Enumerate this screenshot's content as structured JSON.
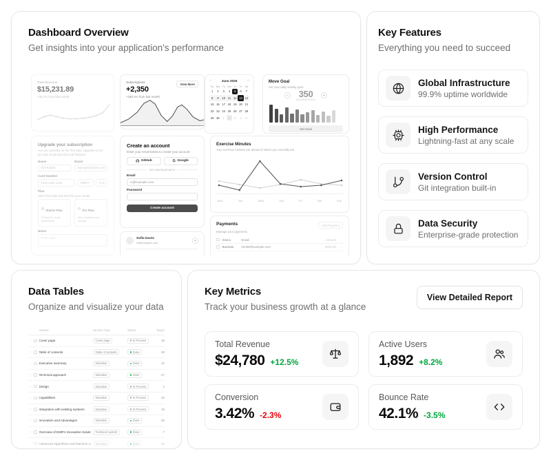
{
  "overview": {
    "title": "Dashboard Overview",
    "subtitle": "Get insights into your application's performance",
    "preview": {
      "revenue": {
        "label": "Total Revenue",
        "value": "$15,231.89",
        "change": "+20.1% from last month",
        "spark": [
          18,
          15,
          13.5,
          15,
          16.5,
          17,
          17,
          16.5,
          15.5,
          14,
          11,
          3
        ]
      },
      "subscriptions": {
        "label": "Subscriptions",
        "action": "View More",
        "value": "+2,350",
        "change": "+180.1% from last month",
        "area": [
          [
            0,
            36
          ],
          [
            10,
            31
          ],
          [
            20,
            22
          ],
          [
            28,
            10
          ],
          [
            35,
            6
          ],
          [
            41,
            11
          ],
          [
            48,
            26
          ],
          [
            55,
            34
          ],
          [
            61,
            27
          ],
          [
            67,
            15
          ],
          [
            72,
            12
          ],
          [
            78,
            18
          ],
          [
            85,
            28
          ],
          [
            93,
            33
          ],
          [
            100,
            31
          ]
        ]
      },
      "calendar": {
        "title": "June 2025",
        "prev": "‹",
        "next": "›",
        "weekdays": [
          "Su",
          "Mo",
          "Tu",
          "We",
          "Th",
          "Fr",
          "Sa"
        ],
        "band_week": 1,
        "weeks": [
          [
            {
              "d": "1"
            },
            {
              "d": "2"
            },
            {
              "d": "3"
            },
            {
              "d": "4"
            },
            {
              "d": "5",
              "sel": true
            },
            {
              "d": "6"
            },
            {
              "d": "7"
            }
          ],
          [
            {
              "d": "8"
            },
            {
              "d": "9"
            },
            {
              "d": "10"
            },
            {
              "d": "11"
            },
            {
              "d": "12"
            },
            {
              "d": "13",
              "sel": true
            },
            {
              "d": "14"
            }
          ],
          [
            {
              "d": "15"
            },
            {
              "d": "16"
            },
            {
              "d": "17"
            },
            {
              "d": "18"
            },
            {
              "d": "19"
            },
            {
              "d": "20"
            },
            {
              "d": "21"
            }
          ],
          [
            {
              "d": "22"
            },
            {
              "d": "23"
            },
            {
              "d": "24"
            },
            {
              "d": "25"
            },
            {
              "d": "26"
            },
            {
              "d": "27"
            },
            {
              "d": "28"
            }
          ],
          [
            {
              "d": "29"
            },
            {
              "d": "30"
            },
            {
              "d": "1",
              "out": true
            },
            {
              "d": "2",
              "out": true,
              "range": true
            },
            {
              "d": "3",
              "out": true
            },
            {
              "d": "4",
              "out": true
            },
            {
              "d": "5",
              "out": true
            }
          ]
        ]
      },
      "move_goal": {
        "title": "Move Goal",
        "subtitle": "Set your daily activity goal.",
        "minus": "−",
        "plus": "+",
        "value": "350",
        "unit": "CALORIES/DAY",
        "button": "Set Goal",
        "bars": [
          26,
          20,
          12,
          22,
          13,
          19,
          12,
          15,
          18,
          11,
          16,
          10,
          18
        ]
      },
      "upgrade": {
        "title": "Upgrade your subscription",
        "desc": "You are currently on the free plan. Upgrade to the pro plan to get access to all features.",
        "name_label": "Name",
        "name_value": "Evil Rabbit",
        "email_label": "Email",
        "email_value": "example@acme.com",
        "card_label": "Card Number",
        "card_placeholder": "1234 1234 1234",
        "mm": "MM/YY",
        "cvc": "CVC",
        "plan_label": "Plan",
        "plan_desc": "Select the plan that best fits your needs.",
        "plans": [
          {
            "name": "Starter Plan",
            "desc": "Perfect for small businesses.",
            "selected": true
          },
          {
            "name": "Pro Plan",
            "desc": "More features and storage.",
            "selected": false
          }
        ],
        "notes_label": "Notes",
        "notes_placeholder": "Enter notes"
      },
      "account": {
        "title": "Create an account",
        "desc": "Enter your email below to create your account",
        "github": "GitHub",
        "google": "Google",
        "divider": "OR CONTINUE WITH",
        "email_label": "Email",
        "email_value": "m@example.com",
        "password_label": "Password",
        "submit": "Create account"
      },
      "chat": {
        "name": "Sofia Davis",
        "email": "m@example.com",
        "add": "+"
      },
      "exercise": {
        "title": "Exercise Minutes",
        "desc": "Your exercise minutes are ahead of where you normally are.",
        "days": [
          "Mon",
          "Tue",
          "Wed",
          "Thu",
          "Fri",
          "Sat",
          "Sun"
        ],
        "series": [
          {
            "name": "average",
            "color": "#d1d1d1",
            "values": [
              40,
              45,
              50,
              45,
              38,
              44,
              46
            ]
          },
          {
            "name": "today",
            "color": "#565656",
            "values": [
              46,
              53,
              11,
              44,
              48,
              46,
              39
            ]
          }
        ]
      },
      "payments": {
        "title": "Payments",
        "action": "Add Payment",
        "desc": "Manage your payments.",
        "headers": [
          "Status",
          "Email",
          "Amount"
        ],
        "rows": [
          {
            "status": "Success",
            "email": "ken99@example.com",
            "amount": "$316.00",
            "menu": "…"
          }
        ]
      }
    }
  },
  "features": {
    "title": "Key Features",
    "subtitle": "Everything you need to succeed",
    "items": [
      {
        "icon": "globe-icon",
        "title": "Global Infrastructure",
        "desc": "99.9% uptime worldwide"
      },
      {
        "icon": "cpu-icon",
        "title": "High Performance",
        "desc": "Lightning-fast at any scale"
      },
      {
        "icon": "git-branch-icon",
        "title": "Version Control",
        "desc": "Git integration built-in"
      },
      {
        "icon": "lock-icon",
        "title": "Data Security",
        "desc": "Enterprise-grade protection"
      }
    ]
  },
  "tables": {
    "title": "Data Tables",
    "subtitle": "Organize and visualize your data",
    "headers": [
      "Header",
      "Section Type",
      "Status",
      "Target"
    ],
    "rows": [
      {
        "header": "Cover page",
        "type": "Cover page",
        "status": "In Process",
        "target": "18"
      },
      {
        "header": "Table of contents",
        "type": "Table of contents",
        "status": "Done",
        "target": "29"
      },
      {
        "header": "Executive summary",
        "type": "Narrative",
        "status": "Done",
        "target": "10"
      },
      {
        "header": "Technical approach",
        "type": "Narrative",
        "status": "Done",
        "target": "27"
      },
      {
        "header": "Design",
        "type": "Narrative",
        "status": "In Process",
        "target": "2"
      },
      {
        "header": "Capabilities",
        "type": "Narrative",
        "status": "In Process",
        "target": "20"
      },
      {
        "header": "Integration with existing systems",
        "type": "Narrative",
        "status": "In Process",
        "target": "19"
      },
      {
        "header": "Innovation and Advantages",
        "type": "Narrative",
        "status": "Done",
        "target": "25"
      },
      {
        "header": "Overview of EMR's Innovative Solutions",
        "type": "Technical content",
        "status": "Done",
        "target": "7"
      },
      {
        "header": "Advanced Algorithms and Machine Learning",
        "type": "Narrative",
        "status": "Done",
        "target": "30"
      }
    ]
  },
  "metrics": {
    "title": "Key Metrics",
    "subtitle": "Track your business growth at a glance",
    "report_button": "View Detailed Report",
    "positive_color": "#00a63e",
    "negative_color": "#e7000b",
    "cards": [
      {
        "label": "Total Revenue",
        "value": "$24,780",
        "change": "+12.5%",
        "trend": "positive",
        "icon": "scale-icon"
      },
      {
        "label": "Active Users",
        "value": "1,892",
        "change": "+8.2%",
        "trend": "positive",
        "icon": "users-icon"
      },
      {
        "label": "Conversion",
        "value": "3.42%",
        "change": "-2.3%",
        "trend": "negative",
        "icon": "wallet-icon"
      },
      {
        "label": "Bounce Rate",
        "value": "42.1%",
        "change": "-3.5%",
        "trend": "positive",
        "icon": "code-icon"
      }
    ]
  }
}
